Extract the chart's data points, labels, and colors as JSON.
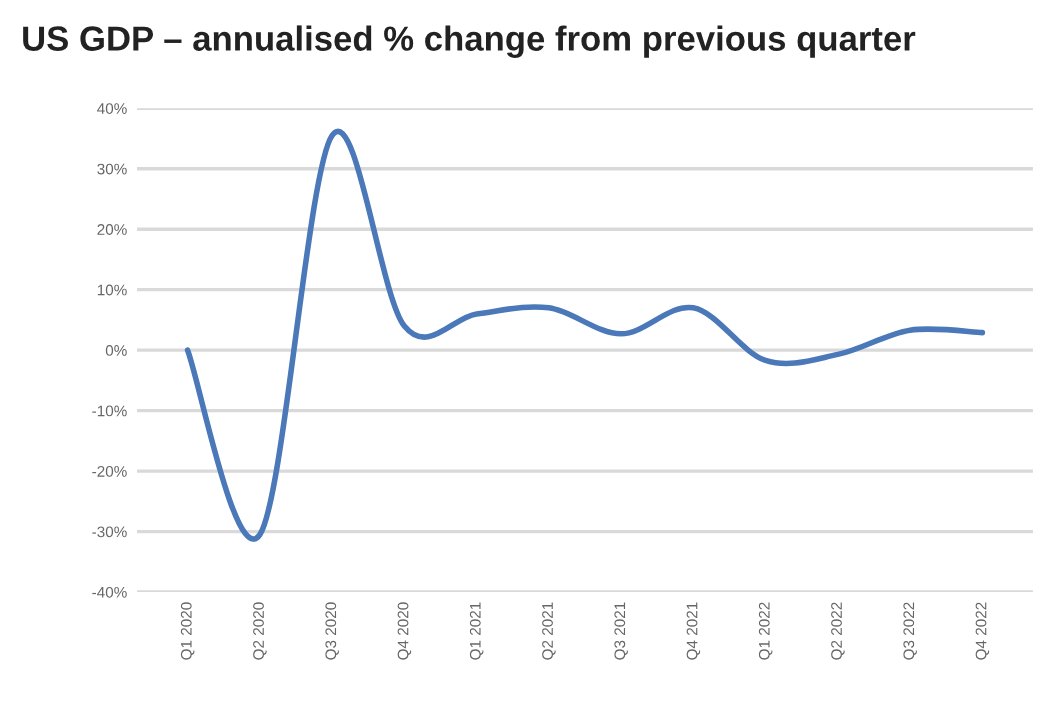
{
  "chart_data": {
    "type": "line",
    "title": "US GDP – annualised % change from previous quarter",
    "categories": [
      "Q1 2020",
      "Q2 2020",
      "Q3 2020",
      "Q4 2020",
      "Q1 2021",
      "Q2 2021",
      "Q3 2021",
      "Q4 2021",
      "Q1 2022",
      "Q2 2022",
      "Q3 2022",
      "Q4 2022"
    ],
    "series": [
      {
        "color": "#4a78b8",
        "values": [
          0,
          -30.5,
          35.5,
          4,
          6,
          7,
          2.7,
          7,
          -1.7,
          -0.7,
          3.3,
          2.9
        ]
      }
    ],
    "ylim": [
      -40,
      40
    ],
    "yticks": [
      {
        "value": -40,
        "label": "-40%"
      },
      {
        "value": -30,
        "label": "-30%"
      },
      {
        "value": -20,
        "label": "-20%"
      },
      {
        "value": -10,
        "label": "-10%"
      },
      {
        "value": 0,
        "label": "0%"
      },
      {
        "value": 10,
        "label": "10%"
      },
      {
        "value": 20,
        "label": "20%"
      },
      {
        "value": 30,
        "label": "30%"
      },
      {
        "value": 40,
        "label": "40%"
      }
    ],
    "grid": "y",
    "legend": false,
    "marker": "none",
    "line_style": "solid"
  }
}
